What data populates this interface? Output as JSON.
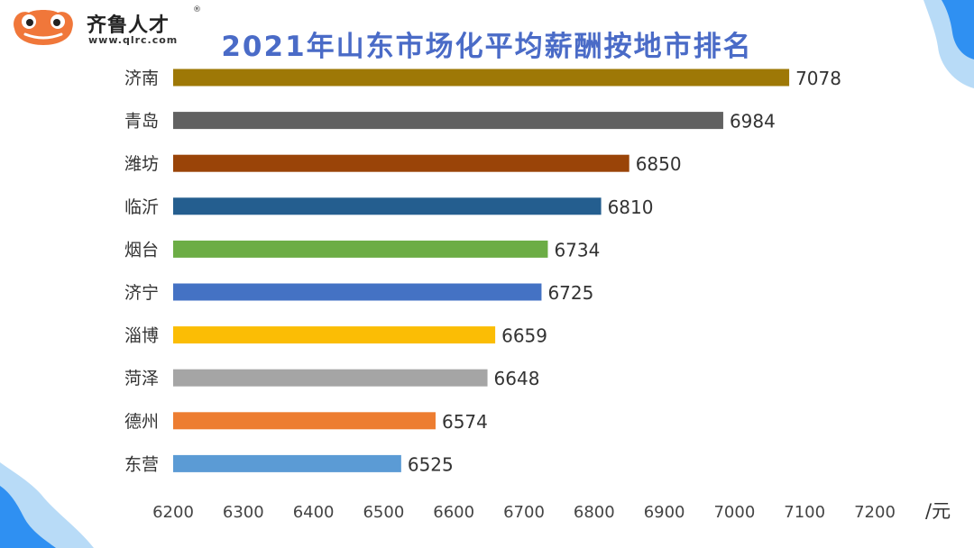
{
  "logo": {
    "name": "齐鲁人才",
    "reg_mark": "®",
    "url": "www.qlrc.com"
  },
  "chart_data": {
    "type": "bar",
    "orientation": "horizontal",
    "title": "2021年山东市场化平均薪酬按地市排名",
    "categories": [
      "济南",
      "青岛",
      "潍坊",
      "临沂",
      "烟台",
      "济宁",
      "淄博",
      "菏泽",
      "德州",
      "东营"
    ],
    "values": [
      7078,
      6984,
      6850,
      6810,
      6734,
      6725,
      6659,
      6648,
      6574,
      6525
    ],
    "colors": [
      "#9e7806",
      "#616161",
      "#9a4408",
      "#245e8f",
      "#6cad45",
      "#4472c4",
      "#fbbd05",
      "#a5a5a5",
      "#ed7d31",
      "#5b9bd5"
    ],
    "xlim": [
      6200,
      7200
    ],
    "xticks": [
      6200,
      6300,
      6400,
      6500,
      6600,
      6700,
      6800,
      6900,
      7000,
      7100,
      7200
    ],
    "xunit": "/元",
    "grid": false,
    "legend": "none"
  }
}
